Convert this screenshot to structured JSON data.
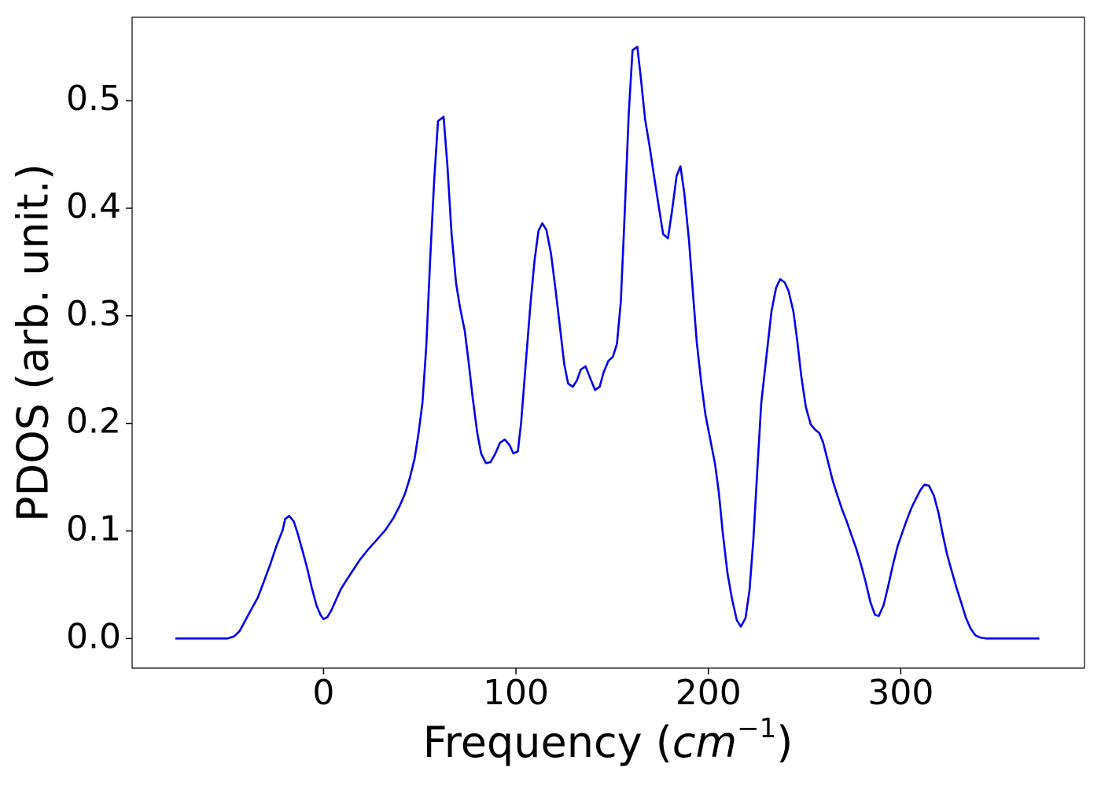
{
  "chart_data": {
    "type": "line",
    "xlabel": [
      "Frequency (",
      "cm",
      "−1",
      ")"
    ],
    "ylabel": "PDOS (arb. unit.)",
    "xlim": [
      -99.5,
      395.5
    ],
    "ylim": [
      -0.0275,
      0.5775
    ],
    "xticks": [
      0,
      100,
      200,
      300
    ],
    "yticks": [
      {
        "value": 0,
        "label": "0.0"
      },
      0.1,
      0.2,
      0.3,
      0.4,
      0.5
    ],
    "grid": false,
    "series": [
      {
        "color": "#0000ee",
        "x": [
          -77,
          -50,
          -46.5,
          -43.6,
          -41.2,
          -37.9,
          -34.2,
          -31,
          -27.7,
          -24.5,
          -21.2,
          -20,
          -17.9,
          -15.5,
          -13.5,
          -11,
          -8.6,
          -6.1,
          -3.7,
          -1.6,
          0,
          2,
          4,
          6.5,
          9,
          12.2,
          15.5,
          18.8,
          22.8,
          27.3,
          32.2,
          36.3,
          39.5,
          42.4,
          44.8,
          47.3,
          49.3,
          51.4,
          53.4,
          55.4,
          57.5,
          59.5,
          62.4,
          64.4,
          66.5,
          68.9,
          70.9,
          73.4,
          75.4,
          77.5,
          79.9,
          81.9,
          84.4,
          86.8,
          89.3,
          91.7,
          94.2,
          96.6,
          98.7,
          101,
          102.7,
          105.2,
          107.6,
          109.7,
          111.7,
          113.7,
          115.8,
          118.2,
          120.6,
          123.1,
          125.1,
          127.1,
          129.6,
          131.7,
          133.7,
          136.2,
          138.6,
          141.1,
          143.5,
          145.5,
          148,
          150.4,
          152.5,
          154.5,
          156.5,
          158.6,
          160.6,
          163.1,
          165.1,
          167.1,
          169.6,
          171.6,
          174.1,
          176.5,
          179,
          181,
          183.5,
          185.5,
          187.5,
          190,
          192,
          194,
          196.5,
          198.5,
          201,
          203.5,
          205.5,
          207.5,
          210,
          212.4,
          214.8,
          216.9,
          219.3,
          221.4,
          223.4,
          225.4,
          227.5,
          230.3,
          232.8,
          235.2,
          237.3,
          239.7,
          241.7,
          244.2,
          246.2,
          248.3,
          250.7,
          253.2,
          255.6,
          257.7,
          259.7,
          262.1,
          264.6,
          267.1,
          269.5,
          271.9,
          274.4,
          276.8,
          279.3,
          281.7,
          284.2,
          286.6,
          288.6,
          291.1,
          293.5,
          296,
          298.4,
          300.9,
          303.3,
          305.7,
          308.2,
          310.2,
          312.3,
          314.7,
          317.2,
          319.6,
          321.7,
          324.1,
          326.6,
          329,
          331.5,
          333.9,
          336.4,
          338.8,
          341.2,
          344.5,
          372
        ],
        "values": [
          0,
          0,
          0.002,
          0.007,
          0.015,
          0.026,
          0.038,
          0.053,
          0.069,
          0.086,
          0.101,
          0.111,
          0.114,
          0.109,
          0.098,
          0.082,
          0.066,
          0.047,
          0.031,
          0.022,
          0.018,
          0.02,
          0.026,
          0.036,
          0.046,
          0.055,
          0.064,
          0.073,
          0.082,
          0.091,
          0.101,
          0.112,
          0.123,
          0.135,
          0.149,
          0.167,
          0.19,
          0.219,
          0.272,
          0.352,
          0.426,
          0.481,
          0.485,
          0.439,
          0.377,
          0.33,
          0.308,
          0.286,
          0.257,
          0.224,
          0.191,
          0.172,
          0.163,
          0.164,
          0.172,
          0.182,
          0.185,
          0.18,
          0.172,
          0.174,
          0.201,
          0.258,
          0.312,
          0.352,
          0.379,
          0.386,
          0.38,
          0.358,
          0.324,
          0.286,
          0.255,
          0.237,
          0.234,
          0.24,
          0.25,
          0.253,
          0.242,
          0.231,
          0.234,
          0.247,
          0.258,
          0.262,
          0.274,
          0.313,
          0.394,
          0.487,
          0.547,
          0.55,
          0.518,
          0.483,
          0.456,
          0.432,
          0.403,
          0.376,
          0.372,
          0.396,
          0.43,
          0.439,
          0.414,
          0.369,
          0.321,
          0.275,
          0.235,
          0.208,
          0.185,
          0.162,
          0.135,
          0.098,
          0.06,
          0.036,
          0.017,
          0.011,
          0.019,
          0.045,
          0.092,
          0.155,
          0.219,
          0.264,
          0.304,
          0.326,
          0.334,
          0.331,
          0.323,
          0.304,
          0.277,
          0.244,
          0.215,
          0.199,
          0.194,
          0.191,
          0.182,
          0.165,
          0.147,
          0.133,
          0.12,
          0.109,
          0.096,
          0.084,
          0.069,
          0.053,
          0.034,
          0.022,
          0.021,
          0.031,
          0.049,
          0.069,
          0.086,
          0.099,
          0.111,
          0.122,
          0.131,
          0.138,
          0.143,
          0.142,
          0.133,
          0.117,
          0.098,
          0.078,
          0.062,
          0.047,
          0.033,
          0.019,
          0.009,
          0.003,
          0.001,
          0,
          0
        ]
      }
    ]
  }
}
